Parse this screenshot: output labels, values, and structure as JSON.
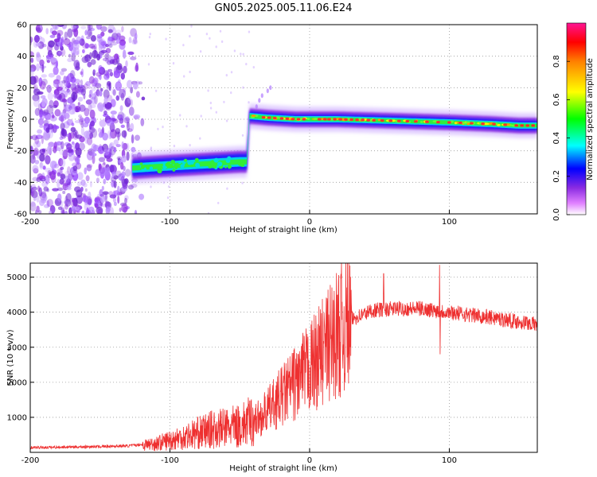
{
  "figure_title": "GN05.2025.005.11.06.E24",
  "chart_data": [
    {
      "type": "heatmap",
      "xlabel": "Height of straight line (km)",
      "ylabel": "Frequency (Hz)",
      "xlim": [
        -200,
        163
      ],
      "ylim": [
        -60,
        60
      ],
      "xticks": [
        -200,
        -100,
        0,
        100
      ],
      "yticks": [
        -60,
        -40,
        -20,
        0,
        20,
        40,
        60
      ],
      "grid": true,
      "colorbar": {
        "label": "Normalized spectral amplitude",
        "range": [
          0,
          1
        ],
        "ticks": [
          0.0,
          0.2,
          0.4,
          0.6,
          0.8
        ]
      },
      "ridge": [
        {
          "x": -127,
          "y": -31
        },
        {
          "x": -110,
          "y": -30
        },
        {
          "x": -90,
          "y": -29
        },
        {
          "x": -70,
          "y": -28
        },
        {
          "x": -50,
          "y": -27
        },
        {
          "x": -45,
          "y": -27
        },
        {
          "x": -43,
          "y": 2
        },
        {
          "x": -30,
          "y": 1
        },
        {
          "x": -10,
          "y": 0
        },
        {
          "x": 20,
          "y": 0
        },
        {
          "x": 60,
          "y": -1
        },
        {
          "x": 100,
          "y": -2
        },
        {
          "x": 130,
          "y": -3
        },
        {
          "x": 150,
          "y": -4
        },
        {
          "x": 163,
          "y": -4
        }
      ]
    },
    {
      "type": "line",
      "xlabel": "Height of straight line (km)",
      "ylabel": "SNR (10 * v/v)",
      "xlim": [
        -200,
        163
      ],
      "ylim": [
        0,
        5400
      ],
      "xticks": [
        -200,
        -100,
        0,
        100
      ],
      "yticks": [
        1000,
        2000,
        3000,
        4000,
        5000
      ],
      "grid": true,
      "color": "#ee3030",
      "envelope": [
        {
          "x": -200,
          "y": 120
        },
        {
          "x": -150,
          "y": 150
        },
        {
          "x": -130,
          "y": 170
        },
        {
          "x": -110,
          "y": 250
        },
        {
          "x": -90,
          "y": 450
        },
        {
          "x": -70,
          "y": 650
        },
        {
          "x": -50,
          "y": 750
        },
        {
          "x": -35,
          "y": 1000
        },
        {
          "x": -20,
          "y": 1600
        },
        {
          "x": -10,
          "y": 2000
        },
        {
          "x": 0,
          "y": 2400
        },
        {
          "x": 10,
          "y": 2900
        },
        {
          "x": 20,
          "y": 3400
        },
        {
          "x": 30,
          "y": 3800
        },
        {
          "x": 45,
          "y": 4050
        },
        {
          "x": 60,
          "y": 4100
        },
        {
          "x": 80,
          "y": 4100
        },
        {
          "x": 100,
          "y": 4000
        },
        {
          "x": 130,
          "y": 3850
        },
        {
          "x": 163,
          "y": 3650
        }
      ],
      "spikes": [
        {
          "x": 53,
          "y": 5100
        },
        {
          "x": 93,
          "y": 5350
        },
        {
          "x": 93.5,
          "y": 2800
        }
      ]
    }
  ]
}
